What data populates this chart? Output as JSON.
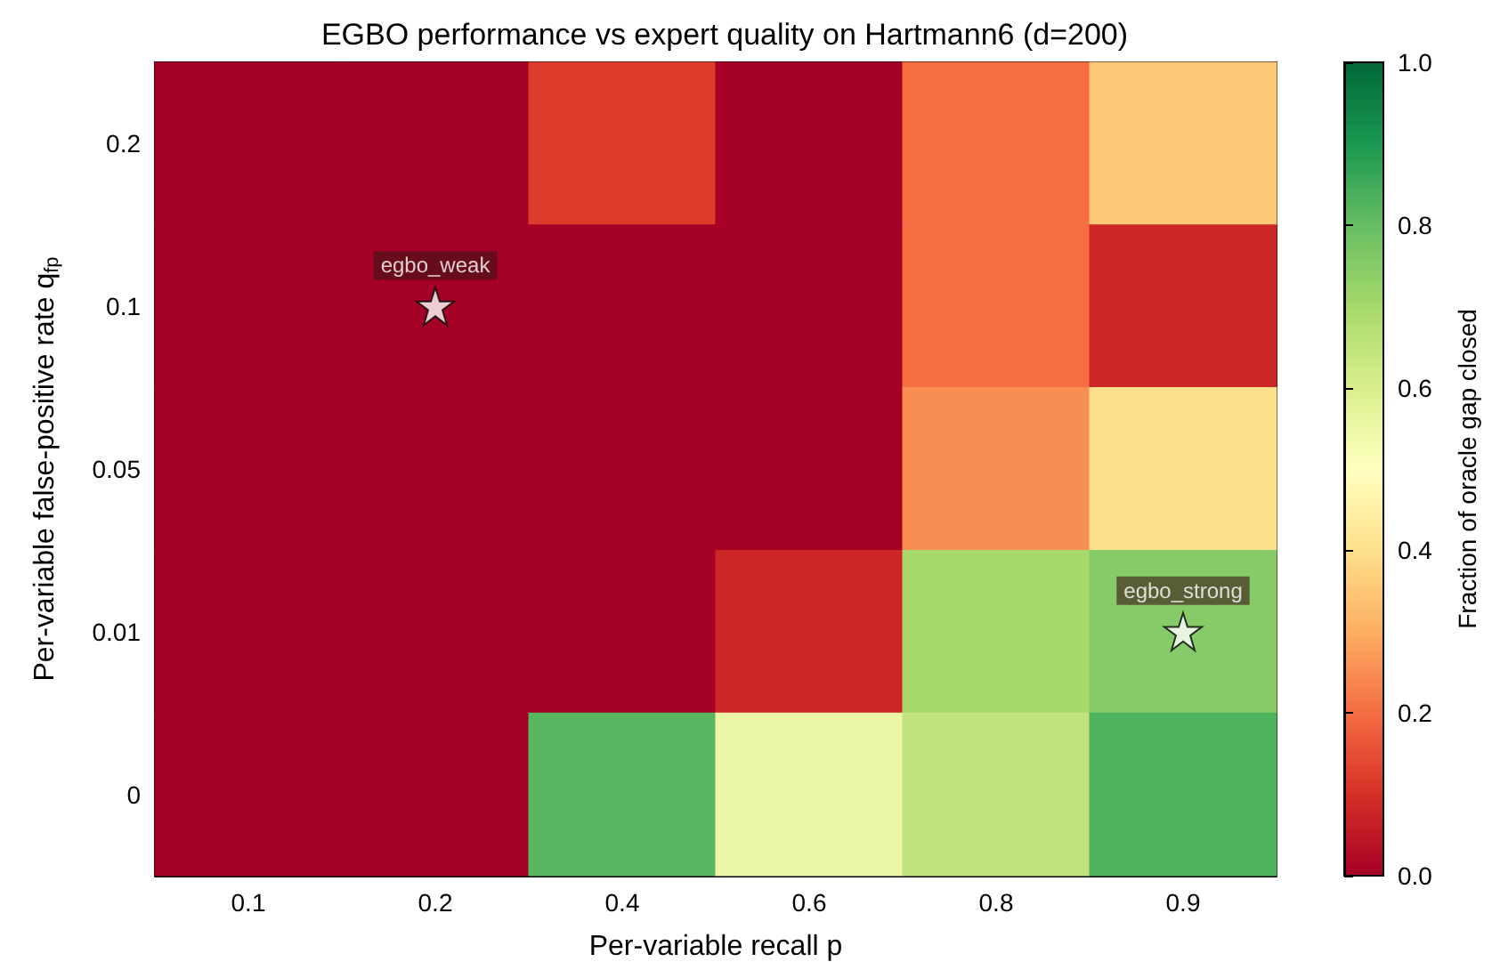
{
  "chart_data": {
    "type": "heatmap",
    "title": "EGBO performance vs expert quality on Hartmann6 (d=200)",
    "xlabel": "Per-variable recall p",
    "ylabel": "Per-variable false-positive rate q$_{fp}$",
    "clabel": "Fraction of oracle gap closed",
    "categories": [
      "0.1",
      "0.2",
      "0.4",
      "0.6",
      "0.8",
      "0.9"
    ],
    "y_categories": [
      "0.2",
      "0.1",
      "0.05",
      "0.01",
      "0"
    ],
    "cells": [
      [
        0,
        0,
        0.12,
        0,
        0.2,
        0.35
      ],
      [
        0,
        0,
        0,
        0,
        0.2,
        0.08
      ],
      [
        0,
        0,
        0,
        0,
        0.25,
        0.4
      ],
      [
        0,
        0,
        0,
        0.08,
        0.7,
        0.75
      ],
      [
        0,
        0,
        0.82,
        0.55,
        0.65,
        0.83
      ]
    ],
    "clim": [
      0,
      1
    ],
    "cticks": [
      {
        "value": 0,
        "label": "0.0"
      },
      {
        "value": 0.2,
        "label": "0.2"
      },
      {
        "value": 0.4,
        "label": "0.4"
      },
      {
        "value": 0.6,
        "label": "0.6"
      },
      {
        "value": 0.8,
        "label": "0.8"
      },
      {
        "value": 1,
        "label": "1.0"
      }
    ],
    "marker": "star",
    "annotations": [
      {
        "text": "egbo_weak",
        "x": "0.2",
        "y": "0.1"
      },
      {
        "text": "egbo_strong",
        "x": "0.9",
        "y": "0.01"
      }
    ]
  }
}
